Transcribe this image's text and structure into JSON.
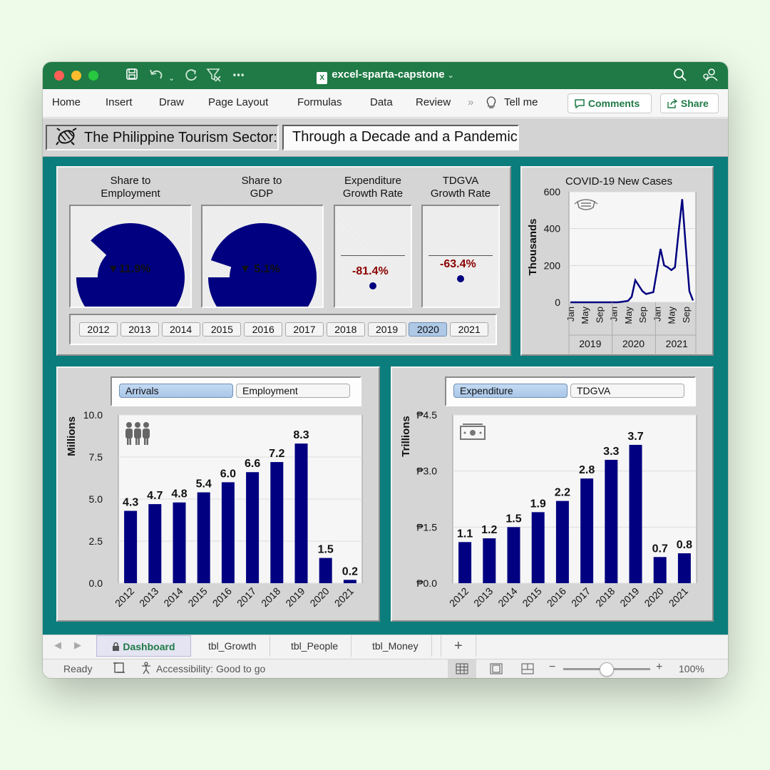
{
  "app": {
    "title": "excel-sparta-capstone",
    "ribbon_tabs": [
      "Home",
      "Insert",
      "Draw",
      "Page Layout",
      "Formulas",
      "Data",
      "Review"
    ],
    "tell_me": "Tell me",
    "comments_label": "Comments",
    "share_label": "Share",
    "accent": "#1f7a45"
  },
  "dashboard": {
    "title_part1": "The Philippine Tourism Sector:",
    "title_part2": "Through a Decade and a Pandemic",
    "kpis": {
      "employment": {
        "label_line1": "Share to",
        "label_line2": "Employment",
        "value": "▼11.9%",
        "share": 0.119
      },
      "gdp": {
        "label_line1": "Share to",
        "label_line2": "GDP",
        "value": "▼ 5.1%",
        "share": 0.051
      },
      "expenditure": {
        "label_line1": "Expenditure",
        "label_line2": "Growth Rate",
        "value": "-81.4%"
      },
      "tdgva": {
        "label_line1": "TDGVA",
        "label_line2": "Growth Rate",
        "value": "-63.4%"
      }
    },
    "years": [
      "2012",
      "2013",
      "2014",
      "2015",
      "2016",
      "2017",
      "2018",
      "2019",
      "2020",
      "2021"
    ],
    "selected_year": "2020",
    "people_toggle": {
      "option1": "Arrivals",
      "option2": "Employment",
      "active": "Arrivals"
    },
    "money_toggle": {
      "option1": "Expenditure",
      "option2": "TDGVA",
      "active": "Expenditure"
    },
    "colors": {
      "bar": "#000080",
      "negative": "#8b0000",
      "sheet_bg": "#0b7d7d"
    }
  },
  "chart_data": [
    {
      "type": "line",
      "title": "COVID-19 New Cases",
      "ylabel": "Thousands",
      "ylim": [
        0,
        600
      ],
      "y_ticks": [
        "600",
        "400",
        "200",
        "0"
      ],
      "x_month_labels": [
        "Jan",
        "May",
        "Sep",
        "Jan",
        "May",
        "Sep",
        "Jan",
        "May",
        "Sep"
      ],
      "x_year_labels": [
        "2019",
        "2020",
        "2021"
      ],
      "x": [
        "2019-01",
        "2019-02",
        "2019-03",
        "2019-04",
        "2019-05",
        "2019-06",
        "2019-07",
        "2019-08",
        "2019-09",
        "2019-10",
        "2019-11",
        "2019-12",
        "2020-01",
        "2020-02",
        "2020-03",
        "2020-04",
        "2020-05",
        "2020-06",
        "2020-07",
        "2020-08",
        "2020-09",
        "2020-10",
        "2020-11",
        "2020-12",
        "2021-01",
        "2021-02",
        "2021-03",
        "2021-04",
        "2021-05",
        "2021-06",
        "2021-07",
        "2021-08",
        "2021-09",
        "2021-10",
        "2021-11"
      ],
      "series": [
        {
          "values": [
            0,
            0,
            0,
            0,
            0,
            0,
            0,
            0,
            0,
            0,
            0,
            0,
            0,
            0,
            2,
            5,
            8,
            30,
            120,
            90,
            60,
            45,
            50,
            55,
            170,
            290,
            200,
            190,
            175,
            190,
            380,
            560,
            300,
            60,
            10
          ]
        }
      ]
    },
    {
      "type": "bar",
      "ylabel": "Millions",
      "ylim": [
        0,
        10
      ],
      "y_ticks": [
        "10.0",
        "7.5",
        "5.0",
        "2.5",
        "0.0"
      ],
      "categories": [
        "2012",
        "2013",
        "2014",
        "2015",
        "2016",
        "2017",
        "2018",
        "2019",
        "2020",
        "2021"
      ],
      "values": [
        4.3,
        4.7,
        4.8,
        5.4,
        6.0,
        6.6,
        7.2,
        8.3,
        1.5,
        0.2
      ],
      "labels": [
        "4.3",
        "4.7",
        "4.8",
        "5.4",
        "6.0",
        "6.6",
        "7.2",
        "8.3",
        "1.5",
        "0.2"
      ]
    },
    {
      "type": "bar",
      "ylabel": "Trillions",
      "ylim": [
        0,
        4.5
      ],
      "y_ticks": [
        "₱4.5",
        "₱3.0",
        "₱1.5",
        "₱0.0"
      ],
      "categories": [
        "2012",
        "2013",
        "2014",
        "2015",
        "2016",
        "2017",
        "2018",
        "2019",
        "2020",
        "2021"
      ],
      "values": [
        1.1,
        1.2,
        1.5,
        1.9,
        2.2,
        2.8,
        3.3,
        3.7,
        0.7,
        0.8
      ],
      "labels": [
        "1.1",
        "1.2",
        "1.5",
        "1.9",
        "2.2",
        "2.8",
        "3.3",
        "3.7",
        "0.7",
        "0.8"
      ]
    }
  ],
  "sheet_tabs": [
    "Dashboard",
    "tbl_Growth",
    "tbl_People",
    "tbl_Money"
  ],
  "active_sheet": "Dashboard",
  "status": {
    "ready": "Ready",
    "accessibility": "Accessibility: Good to go",
    "zoom": "100%"
  }
}
